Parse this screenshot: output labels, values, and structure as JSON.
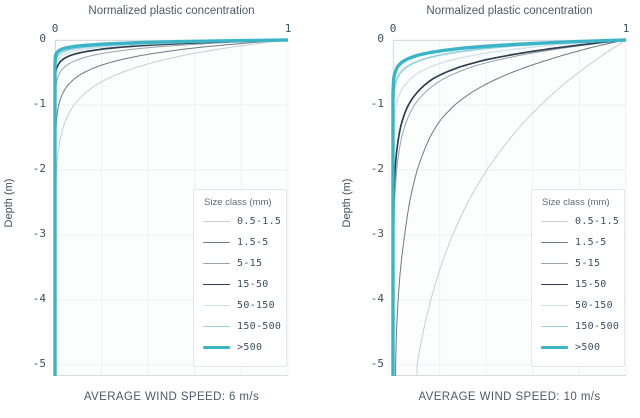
{
  "legend": {
    "header": "Size class (mm)",
    "position": "inside-bottom-right"
  },
  "chart_data": [
    {
      "type": "line",
      "title": "Normalized plastic concentration",
      "caption": "AVERAGE WIND SPEED: 6 m/s",
      "wind_speed_ms": 6,
      "xlabel": "Normalized plastic concentration",
      "ylabel": "Depth (m)",
      "xlim": [
        0,
        1
      ],
      "ylim": [
        -5.17,
        0
      ],
      "x_ticks": [
        "0",
        "1"
      ],
      "y_ticks": [
        "0",
        "-1",
        "-2",
        "-3",
        "-4",
        "-5"
      ],
      "grid": true,
      "depths_m": [
        0,
        -0.05,
        -0.1,
        -0.15,
        -0.2,
        -0.25,
        -0.3,
        -0.4,
        -0.5,
        -0.6,
        -0.8,
        -1,
        -1.25,
        -1.5,
        -2,
        -2.5,
        -3,
        -3.5,
        -4,
        -4.5,
        -5
      ],
      "series": [
        {
          "name": "0.5-1.5",
          "color": "#c8ced4",
          "weight": 1,
          "values": [
            1,
            0.882,
            0.779,
            0.687,
            0.607,
            0.535,
            0.472,
            0.368,
            0.287,
            0.223,
            0.135,
            0.082,
            0.044,
            0.024,
            0.007,
            0.002,
            0.001,
            0,
            0,
            0,
            0
          ]
        },
        {
          "name": "1.5-5",
          "color": "#6e7983",
          "weight": 1,
          "values": [
            1,
            0.812,
            0.659,
            0.535,
            0.435,
            0.353,
            0.287,
            0.189,
            0.125,
            0.082,
            0.036,
            0.016,
            0.006,
            0.002,
            0,
            0,
            0,
            0,
            0,
            0,
            0
          ]
        },
        {
          "name": "5-15",
          "color": "#9aa3ab",
          "weight": 1,
          "values": [
            1,
            0.681,
            0.463,
            0.315,
            0.215,
            0.146,
            0.1,
            0.046,
            0.021,
            0.01,
            0.002,
            0.001,
            0,
            0,
            0,
            0,
            0,
            0,
            0,
            0,
            0
          ]
        },
        {
          "name": "15-50",
          "color": "#2d3e50",
          "weight": 1.7,
          "values": [
            1,
            0.567,
            0.321,
            0.182,
            0.103,
            0.058,
            0.033,
            0.011,
            0.003,
            0.001,
            0,
            0,
            0,
            0,
            0,
            0,
            0,
            0,
            0,
            0,
            0
          ]
        },
        {
          "name": "50-150",
          "color": "#cfe1ea",
          "weight": 1.3,
          "values": [
            1,
            0.479,
            0.23,
            0.11,
            0.053,
            0.025,
            0.012,
            0.003,
            0.001,
            0,
            0,
            0,
            0,
            0,
            0,
            0,
            0,
            0,
            0,
            0,
            0
          ]
        },
        {
          "name": "150-500",
          "color": "#96d0dc",
          "weight": 1.7,
          "values": [
            1,
            0.396,
            0.157,
            0.062,
            0.025,
            0.01,
            0.004,
            0.001,
            0,
            0,
            0,
            0,
            0,
            0,
            0,
            0,
            0,
            0,
            0,
            0,
            0
          ]
        },
        {
          "name": ">500",
          "color": "#3cb4c7",
          "weight": 3.4,
          "values": [
            1,
            0.287,
            0.082,
            0.024,
            0.007,
            0.002,
            0.001,
            0,
            0,
            0,
            0,
            0,
            0,
            0,
            0,
            0,
            0,
            0,
            0,
            0,
            0
          ]
        }
      ]
    },
    {
      "type": "line",
      "title": "Normalized plastic concentration",
      "caption": "AVERAGE WIND SPEED: 10 m/s",
      "wind_speed_ms": 10,
      "xlabel": "Normalized plastic concentration",
      "ylabel": "Depth (m)",
      "xlim": [
        0,
        1
      ],
      "ylim": [
        -5.17,
        0
      ],
      "x_ticks": [
        "0",
        "1"
      ],
      "y_ticks": [
        "0",
        "-1",
        "-2",
        "-3",
        "-4",
        "-5"
      ],
      "grid": true,
      "depths_m": [
        0,
        -0.05,
        -0.1,
        -0.15,
        -0.2,
        -0.25,
        -0.3,
        -0.4,
        -0.5,
        -0.6,
        -0.8,
        -1,
        -1.25,
        -1.5,
        -2,
        -2.5,
        -3,
        -3.5,
        -4,
        -4.5,
        -5
      ],
      "series": [
        {
          "name": "0.5-1.5",
          "color": "#c8ced4",
          "weight": 1,
          "values": [
            1,
            0.978,
            0.956,
            0.934,
            0.913,
            0.893,
            0.873,
            0.834,
            0.797,
            0.761,
            0.695,
            0.635,
            0.566,
            0.506,
            0.403,
            0.321,
            0.256,
            0.204,
            0.162,
            0.129,
            0.103
          ]
        },
        {
          "name": "1.5-5",
          "color": "#6e7983",
          "weight": 1,
          "values": [
            1,
            0.93,
            0.87,
            0.815,
            0.765,
            0.715,
            0.67,
            0.585,
            0.51,
            0.445,
            0.34,
            0.265,
            0.2,
            0.158,
            0.104,
            0.071,
            0.05,
            0.033,
            0.022,
            0.015,
            0.011
          ]
        },
        {
          "name": "5-15",
          "color": "#9aa3ab",
          "weight": 1,
          "values": [
            1,
            0.88,
            0.78,
            0.685,
            0.6,
            0.525,
            0.46,
            0.35,
            0.275,
            0.215,
            0.14,
            0.092,
            0.058,
            0.037,
            0.016,
            0.007,
            0.003,
            0.001,
            0,
            0,
            0
          ]
        },
        {
          "name": "15-50",
          "color": "#2d3e50",
          "weight": 1.7,
          "values": [
            1,
            0.865,
            0.75,
            0.645,
            0.555,
            0.475,
            0.405,
            0.3,
            0.225,
            0.17,
            0.105,
            0.066,
            0.039,
            0.024,
            0.009,
            0.003,
            0.001,
            0,
            0,
            0,
            0
          ]
        },
        {
          "name": "50-150",
          "color": "#cfe1ea",
          "weight": 1.3,
          "values": [
            1,
            0.79,
            0.625,
            0.5,
            0.4,
            0.325,
            0.26,
            0.17,
            0.112,
            0.074,
            0.032,
            0.014,
            0.005,
            0.002,
            0,
            0,
            0,
            0,
            0,
            0,
            0
          ]
        },
        {
          "name": "150-500",
          "color": "#96d0dc",
          "weight": 1.7,
          "values": [
            1,
            0.7,
            0.49,
            0.35,
            0.25,
            0.178,
            0.127,
            0.065,
            0.033,
            0.017,
            0.005,
            0.001,
            0,
            0,
            0,
            0,
            0,
            0,
            0,
            0,
            0
          ]
        },
        {
          "name": ">500",
          "color": "#3cb4c7",
          "weight": 3.4,
          "values": [
            1,
            0.62,
            0.385,
            0.24,
            0.15,
            0.093,
            0.058,
            0.022,
            0.009,
            0.003,
            0,
            0,
            0,
            0,
            0,
            0,
            0,
            0,
            0,
            0,
            0
          ]
        }
      ]
    }
  ]
}
